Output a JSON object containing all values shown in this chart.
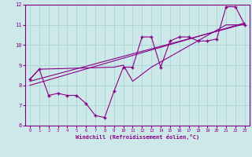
{
  "xlabel": "Windchill (Refroidissement éolien,°C)",
  "background_color": "#cce8e8",
  "grid_color": "#aad4d4",
  "line_color": "#880088",
  "axis_color": "#880088",
  "xlim": [
    -0.5,
    23.5
  ],
  "ylim": [
    6,
    12
  ],
  "xticks": [
    0,
    1,
    2,
    3,
    4,
    5,
    6,
    7,
    8,
    9,
    10,
    11,
    12,
    13,
    14,
    15,
    16,
    17,
    18,
    19,
    20,
    21,
    22,
    23
  ],
  "yticks": [
    6,
    7,
    8,
    9,
    10,
    11,
    12
  ],
  "line1_x": [
    0,
    1,
    2,
    3,
    4,
    5,
    6,
    7,
    8,
    9,
    10,
    11,
    12,
    13,
    14,
    15,
    16,
    17,
    18,
    19,
    20,
    21,
    22,
    23
  ],
  "line1_y": [
    8.3,
    8.8,
    7.5,
    7.6,
    7.5,
    7.5,
    7.1,
    6.5,
    6.4,
    7.7,
    8.9,
    8.9,
    10.4,
    10.4,
    8.9,
    10.2,
    10.4,
    10.4,
    10.2,
    10.2,
    10.3,
    11.9,
    11.9,
    11.0
  ],
  "line2_x": [
    0,
    1,
    9,
    10,
    11,
    13,
    21,
    22,
    23
  ],
  "line2_y": [
    8.3,
    8.8,
    8.9,
    9.0,
    8.2,
    8.9,
    11.0,
    11.0,
    11.0
  ],
  "line3_x": [
    0,
    23
  ],
  "line3_y": [
    8.2,
    11.05
  ],
  "line4_x": [
    0,
    23
  ],
  "line4_y": [
    8.0,
    11.1
  ]
}
